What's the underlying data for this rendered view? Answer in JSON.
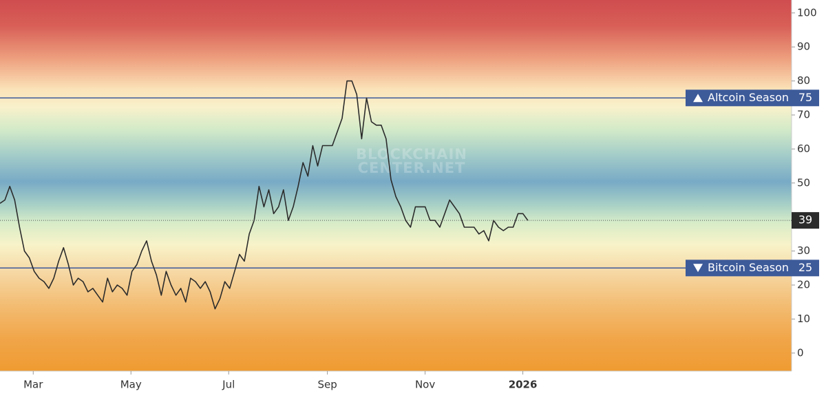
{
  "chart_data": {
    "type": "line",
    "watermark": [
      "BLOCKCHAIN",
      "CENTER.NET"
    ],
    "values": [
      44,
      45,
      49,
      45,
      37,
      30,
      28,
      24,
      22,
      21,
      19,
      22,
      27,
      31,
      26,
      20,
      22,
      21,
      18,
      19,
      17,
      15,
      22,
      18,
      20,
      19,
      17,
      24,
      26,
      30,
      33,
      27,
      23,
      17,
      24,
      20,
      17,
      19,
      15,
      22,
      21,
      19,
      21,
      18,
      13,
      16,
      21,
      19,
      24,
      29,
      27,
      35,
      39,
      49,
      43,
      48,
      41,
      43,
      48,
      39,
      43,
      49,
      56,
      52,
      61,
      55,
      61,
      61,
      61,
      65,
      69,
      80,
      80,
      76,
      63,
      75,
      68,
      67,
      67,
      63,
      51,
      46,
      43,
      39,
      37,
      43,
      43,
      43,
      39,
      39,
      37,
      41,
      45,
      43,
      41,
      37,
      37,
      37,
      35,
      36,
      33,
      39,
      37,
      36,
      37,
      37,
      41,
      41,
      39
    ],
    "color": "#2b2b2b",
    "xlim": [
      0,
      162
    ],
    "xticks": [
      {
        "value": 6.8,
        "label": "Mar"
      },
      {
        "value": 26.8,
        "label": "May"
      },
      {
        "value": 46.8,
        "label": "Jul"
      },
      {
        "value": 67,
        "label": "Sep"
      },
      {
        "value": 87,
        "label": "Nov"
      },
      {
        "value": 107,
        "label": "2026"
      }
    ],
    "ylim": [
      -5.3,
      103.8
    ],
    "yticks": [
      0,
      10,
      20,
      30,
      40,
      50,
      60,
      70,
      80,
      90,
      100
    ],
    "thresholds": [
      {
        "label": "Altcoin Season",
        "value": 75,
        "direction": "up"
      },
      {
        "label": "Bitcoin Season",
        "value": 25,
        "direction": "down"
      }
    ],
    "threshold_color": "#3d5a99"
  }
}
